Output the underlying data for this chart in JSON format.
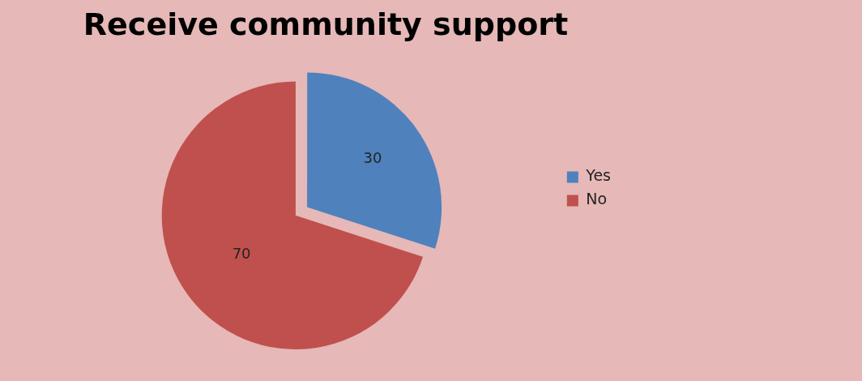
{
  "chart_data": {
    "type": "pie",
    "title": "Receive community support",
    "categories": [
      "Yes",
      "No"
    ],
    "values": [
      30,
      70
    ],
    "colors": [
      "#4f81bd",
      "#c0504d"
    ],
    "data_labels": true,
    "legend": "right"
  }
}
